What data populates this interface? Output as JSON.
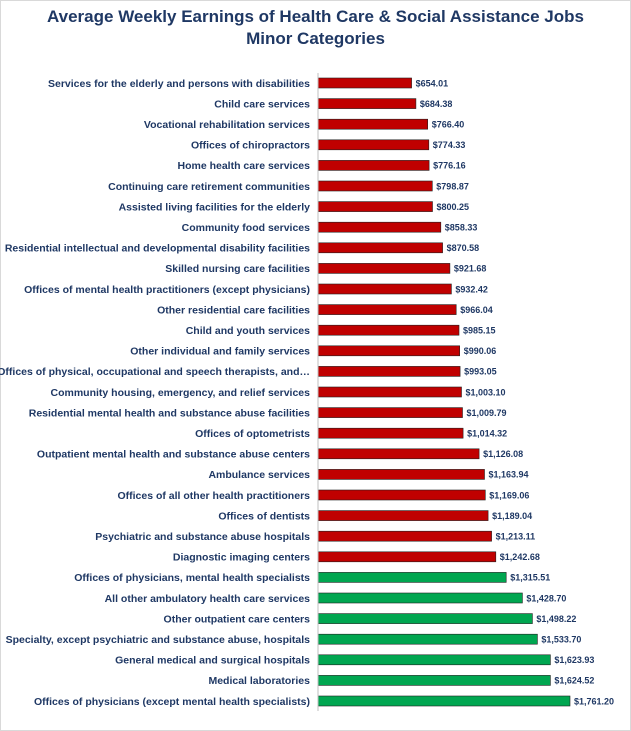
{
  "chart_data": {
    "type": "bar",
    "orientation": "horizontal",
    "title": "Average Weekly Earnings of Health Care & Social Assistance Jobs",
    "subtitle": "Minor Categories",
    "colors": {
      "red": "#c00000",
      "green": "#00a650",
      "text": "#1f3864"
    },
    "categories": [
      "Services for the elderly and persons with disabilities",
      "Child care services",
      "Vocational rehabilitation services",
      "Offices of chiropractors",
      "Home health care services",
      "Continuing care retirement communities",
      "Assisted living facilities for the elderly",
      "Community food services",
      "Residential intellectual and developmental disability facilities",
      "Skilled nursing care facilities",
      "Offices of mental health practitioners (except physicians)",
      "Other residential care facilities",
      "Child and youth services",
      "Other individual and family services",
      "Offices of physical, occupational and speech therapists, and…",
      "Community housing, emergency, and relief services",
      "Residential mental health and substance abuse facilities",
      "Offices of optometrists",
      "Outpatient mental health and substance abuse centers",
      "Ambulance services",
      "Offices of all other health practitioners",
      "Offices of dentists",
      "Psychiatric and substance abuse hospitals",
      "Diagnostic imaging centers",
      "Offices of physicians, mental health specialists",
      "All other ambulatory health care services",
      "Other outpatient care centers",
      "Specialty, except psychiatric and substance abuse, hospitals",
      "General medical and surgical hospitals",
      "Medical laboratories",
      "Offices of physicians (except mental health specialists)"
    ],
    "values": [
      654.01,
      684.38,
      766.4,
      774.33,
      776.16,
      798.87,
      800.25,
      858.33,
      870.58,
      921.68,
      932.42,
      966.04,
      985.15,
      990.06,
      993.05,
      1003.1,
      1009.79,
      1014.32,
      1126.08,
      1163.94,
      1169.06,
      1189.04,
      1213.11,
      1242.68,
      1315.51,
      1428.7,
      1498.22,
      1533.7,
      1623.93,
      1624.52,
      1761.2
    ],
    "value_labels": [
      "$654.01",
      "$684.38",
      "$766.40",
      "$774.33",
      "$776.16",
      "$798.87",
      "$800.25",
      "$858.33",
      "$870.58",
      "$921.68",
      "$932.42",
      "$966.04",
      "$985.15",
      "$990.06",
      "$993.05",
      "$1,003.10",
      "$1,009.79",
      "$1,014.32",
      "$1,126.08",
      "$1,163.94",
      "$1,169.06",
      "$1,189.04",
      "$1,213.11",
      "$1,242.68",
      "$1,315.51",
      "$1,428.70",
      "$1,498.22",
      "$1,533.70",
      "$1,623.93",
      "$1,624.52",
      "$1,761.20"
    ],
    "bar_colors": [
      "red",
      "red",
      "red",
      "red",
      "red",
      "red",
      "red",
      "red",
      "red",
      "red",
      "red",
      "red",
      "red",
      "red",
      "red",
      "red",
      "red",
      "red",
      "red",
      "red",
      "red",
      "red",
      "red",
      "red",
      "green",
      "green",
      "green",
      "green",
      "green",
      "green",
      "green"
    ],
    "xlim": [
      0,
      1761.2
    ],
    "grid": false,
    "legend": "none"
  }
}
